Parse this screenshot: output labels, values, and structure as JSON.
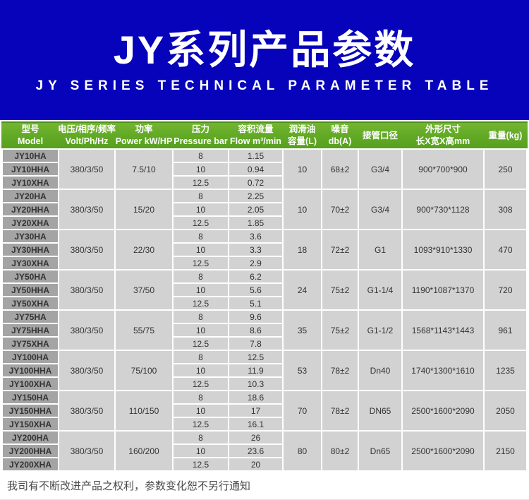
{
  "banner": {
    "title": "JY系列产品参数",
    "subtitle": "JY SERIES TECHNICAL PARAMETER TABLE"
  },
  "colors": {
    "banner_bg": "#0703BB",
    "header_green": "#63AB27",
    "header_green_dark": "#4E8F1D",
    "model_cell_bg": "#A4A4A4",
    "data_cell_bg": "#D2D2D2",
    "cell_text": "#333333",
    "note_text": "#4A4A4A"
  },
  "table": {
    "headers": [
      {
        "line1": "型号",
        "line2": "Model"
      },
      {
        "line1": "电压/相序/频率",
        "line2": "Volt/Ph/Hz"
      },
      {
        "line1": "功率",
        "line2": "Power kW/HP"
      },
      {
        "line1": "压力",
        "line2": "Pressure bar"
      },
      {
        "line1": "容积流量",
        "line2": "Flow m³/min"
      },
      {
        "line1": "润滑油",
        "line2": "容量(L)"
      },
      {
        "line1": "噪音",
        "line2": "db(A)"
      },
      {
        "line1": "接管口径",
        "line2": ""
      },
      {
        "line1": "外形尺寸",
        "line2": "长X宽X高mm"
      },
      {
        "line1": "重量(kg)",
        "line2": ""
      }
    ],
    "groups": [
      {
        "models": [
          "JY10HA",
          "JY10HHA",
          "JY10XHA"
        ],
        "volt": "380/3/50",
        "power": "7.5/10",
        "pressures": [
          "8",
          "10",
          "12.5"
        ],
        "flows": [
          "1.15",
          "0.94",
          "0.72"
        ],
        "oil": "10",
        "noise": "68±2",
        "pipe": "G3/4",
        "dims": "900*700*900",
        "weight": "250"
      },
      {
        "models": [
          "JY20HA",
          "JY20HHA",
          "JY20XHA"
        ],
        "volt": "380/3/50",
        "power": "15/20",
        "pressures": [
          "8",
          "10",
          "12.5"
        ],
        "flows": [
          "2.25",
          "2.05",
          "1.85"
        ],
        "oil": "10",
        "noise": "70±2",
        "pipe": "G3/4",
        "dims": "900*730*1128",
        "weight": "308"
      },
      {
        "models": [
          "JY30HA",
          "JY30HHA",
          "JY30XHA"
        ],
        "volt": "380/3/50",
        "power": "22/30",
        "pressures": [
          "8",
          "10",
          "12.5"
        ],
        "flows": [
          "3.6",
          "3.3",
          "2.9"
        ],
        "oil": "18",
        "noise": "72±2",
        "pipe": "G1",
        "dims": "1093*910*1330",
        "weight": "470"
      },
      {
        "models": [
          "JY50HA",
          "JY50HHA",
          "JY50XHA"
        ],
        "volt": "380/3/50",
        "power": "37/50",
        "pressures": [
          "8",
          "10",
          "12.5"
        ],
        "flows": [
          "6.2",
          "5.6",
          "5.1"
        ],
        "oil": "24",
        "noise": "75±2",
        "pipe": "G1-1/4",
        "dims": "1190*1087*1370",
        "weight": "720"
      },
      {
        "models": [
          "JY75HA",
          "JY75HHA",
          "JY75XHA"
        ],
        "volt": "380/3/50",
        "power": "55/75",
        "pressures": [
          "8",
          "10",
          "12.5"
        ],
        "flows": [
          "9.6",
          "8.6",
          "7.8"
        ],
        "oil": "35",
        "noise": "75±2",
        "pipe": "G1-1/2",
        "dims": "1568*1143*1443",
        "weight": "961"
      },
      {
        "models": [
          "JY100HA",
          "JY100HHA",
          "JY100XHA"
        ],
        "volt": "380/3/50",
        "power": "75/100",
        "pressures": [
          "8",
          "10",
          "12.5"
        ],
        "flows": [
          "12.5",
          "11.9",
          "10.3"
        ],
        "oil": "53",
        "noise": "78±2",
        "pipe": "Dn40",
        "dims": "1740*1300*1610",
        "weight": "1235"
      },
      {
        "models": [
          "JY150HA",
          "JY150HHA",
          "JY150XHA"
        ],
        "volt": "380/3/50",
        "power": "110/150",
        "pressures": [
          "8",
          "10",
          "12.5"
        ],
        "flows": [
          "18.6",
          "17",
          "16.1"
        ],
        "oil": "70",
        "noise": "78±2",
        "pipe": "DN65",
        "dims": "2500*1600*2090",
        "weight": "2050"
      },
      {
        "models": [
          "JY200HA",
          "JY200HHA",
          "JY200XHA"
        ],
        "volt": "380/3/50",
        "power": "160/200",
        "pressures": [
          "8",
          "10",
          "12.5"
        ],
        "flows": [
          "26",
          "23.6",
          "20"
        ],
        "oil": "80",
        "noise": "80±2",
        "pipe": "Dn65",
        "dims": "2500*1600*2090",
        "weight": "2150"
      }
    ]
  },
  "footer": {
    "note": "我司有不断改进产品之权利，参数变化恕不另行通知"
  }
}
